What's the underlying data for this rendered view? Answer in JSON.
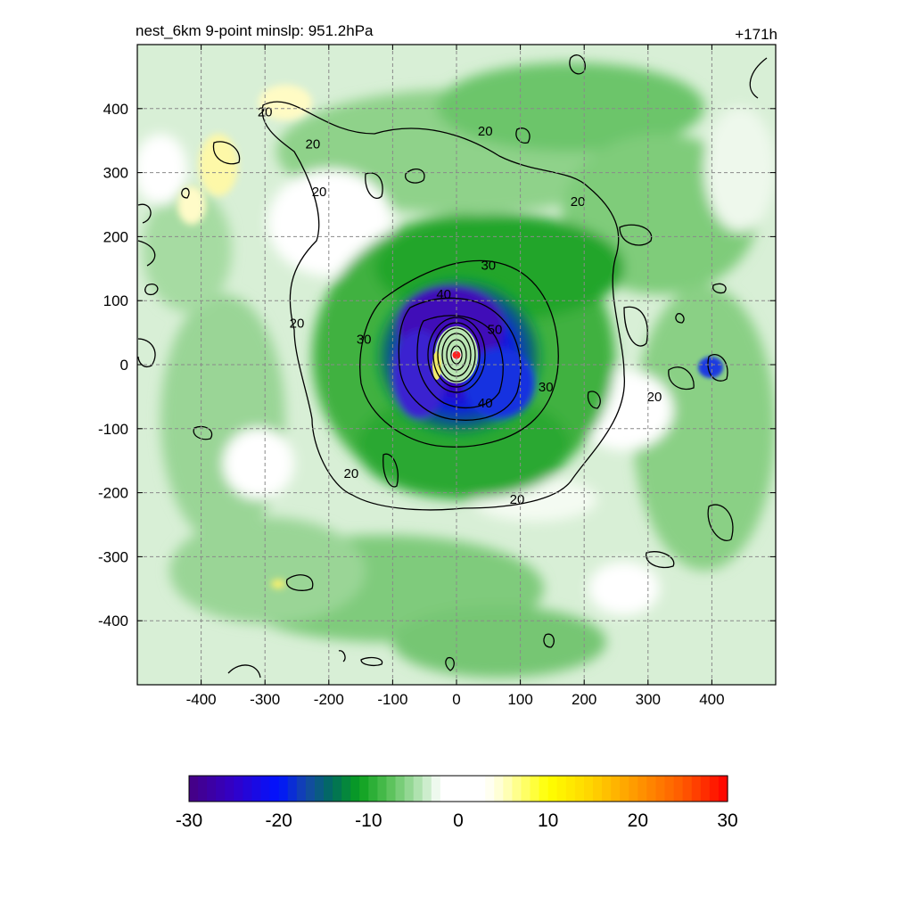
{
  "chart_data": {
    "type": "contour",
    "title_left": "nest_6km  9-point minslp: 951.2hPa",
    "title_right": "+171h",
    "x_ticks": [
      -400,
      -300,
      -200,
      -100,
      0,
      100,
      200,
      300,
      400
    ],
    "y_ticks": [
      400,
      300,
      200,
      100,
      0,
      -100,
      -200,
      -300,
      -400
    ],
    "xlim": [
      -500,
      500
    ],
    "ylim": [
      -500,
      500
    ],
    "grid": true,
    "colorbar": {
      "ticks": [
        -30,
        -20,
        -10,
        0,
        10,
        20,
        30
      ],
      "range": [
        -30,
        30
      ],
      "orientation": "horizontal",
      "placement": "bottom"
    },
    "contour_labels": [
      {
        "text": "20",
        "x": -300,
        "y": 395
      },
      {
        "text": "20",
        "x": -225,
        "y": 345
      },
      {
        "text": "20",
        "x": 45,
        "y": 365
      },
      {
        "text": "20",
        "x": -215,
        "y": 270
      },
      {
        "text": "20",
        "x": 190,
        "y": 255
      },
      {
        "text": "20",
        "x": -250,
        "y": 65
      },
      {
        "text": "20",
        "x": 310,
        "y": -50
      },
      {
        "text": "20",
        "x": -165,
        "y": -170
      },
      {
        "text": "20",
        "x": 95,
        "y": -210
      },
      {
        "text": "30",
        "x": 50,
        "y": 155
      },
      {
        "text": "30",
        "x": -145,
        "y": 40
      },
      {
        "text": "30",
        "x": 140,
        "y": -35
      },
      {
        "text": "40",
        "x": -20,
        "y": 110
      },
      {
        "text": "40",
        "x": 45,
        "y": -60
      },
      {
        "text": "50",
        "x": 60,
        "y": 55
      }
    ],
    "storm_center": {
      "x": 0,
      "y": 15
    }
  }
}
